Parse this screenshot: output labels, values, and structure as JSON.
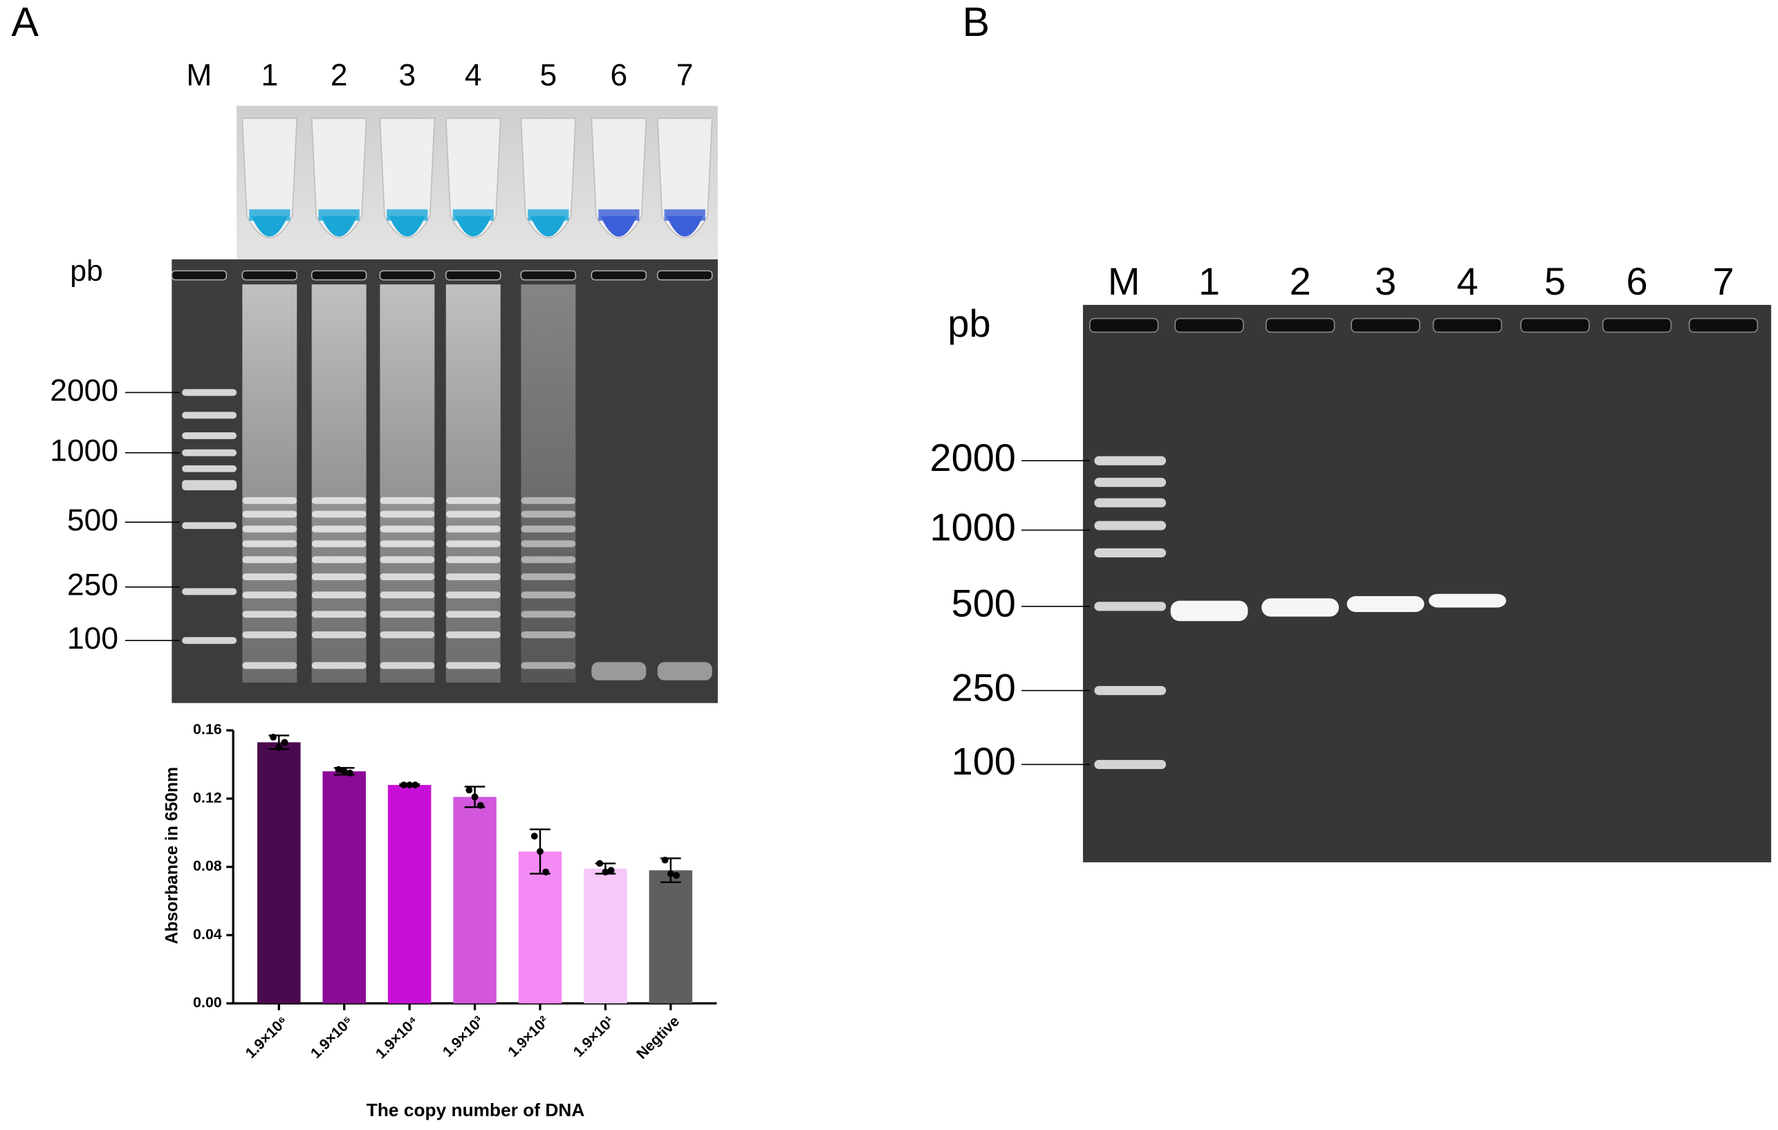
{
  "panel_a": {
    "label": "A",
    "lanes": [
      "M",
      "1",
      "2",
      "3",
      "4",
      "5",
      "6",
      "7"
    ],
    "unit": "pb",
    "sizes": [
      "2000",
      "1000",
      "500",
      "250",
      "100"
    ]
  },
  "panel_b": {
    "label": "B",
    "lanes": [
      "M",
      "1",
      "2",
      "3",
      "4",
      "5",
      "6",
      "7"
    ],
    "unit": "pb",
    "sizes": [
      "2000",
      "1000",
      "500",
      "250",
      "100"
    ]
  },
  "chart_data": {
    "type": "bar",
    "x_label": "The copy number of DNA",
    "y_label": "Absorbance in 650nm",
    "categories": [
      "1.9×10⁶",
      "1.9×10⁵",
      "1.9×10⁴",
      "1.9×10³",
      "1.9×10²",
      "1.9×10¹",
      "Negtive"
    ],
    "values": [
      0.153,
      0.136,
      0.128,
      0.121,
      0.089,
      0.079,
      0.078
    ],
    "errors": [
      0.004,
      0.002,
      0.0005,
      0.006,
      0.013,
      0.003,
      0.007
    ],
    "points": [
      [
        0.156,
        0.15,
        0.153
      ],
      [
        0.137,
        0.136,
        0.135
      ],
      [
        0.128,
        0.128,
        0.128
      ],
      [
        0.125,
        0.121,
        0.116
      ],
      [
        0.098,
        0.089,
        0.077
      ],
      [
        0.082,
        0.077,
        0.078
      ],
      [
        0.084,
        0.076,
        0.075
      ]
    ],
    "colors": [
      "#4a0a4f",
      "#8b0a96",
      "#c80fd8",
      "#d257dc",
      "#f48bf5",
      "#f7c8f7",
      "#5f5f5f"
    ],
    "ylim": [
      0,
      0.16
    ],
    "yticks": [
      {
        "value": 0,
        "label": "0.00"
      },
      {
        "value": 0.04,
        "label": "0.04"
      },
      {
        "value": 0.08,
        "label": "0.08"
      },
      {
        "value": 0.12,
        "label": "0.12"
      },
      {
        "value": 0.16,
        "label": "0.16"
      }
    ]
  }
}
